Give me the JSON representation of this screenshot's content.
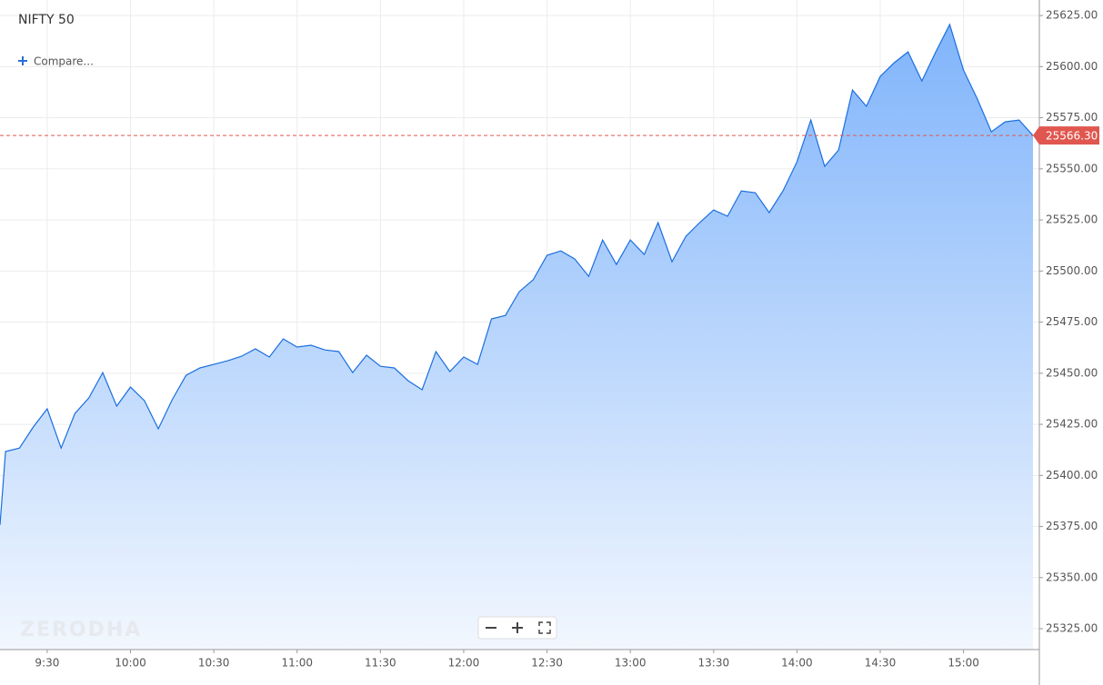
{
  "chart_data": {
    "type": "area",
    "title": "NIFTY 50",
    "compare_label": "Compare...",
    "watermark": "ZERODHA",
    "x": [
      553,
      555,
      560,
      565,
      570,
      575,
      580,
      585,
      590,
      595,
      600,
      605,
      610,
      615,
      620,
      625,
      630,
      635,
      640,
      645,
      650,
      655,
      660,
      665,
      670,
      675,
      680,
      685,
      690,
      695,
      700,
      705,
      710,
      715,
      720,
      725,
      730,
      735,
      740,
      745,
      750,
      755,
      760,
      765,
      770,
      775,
      780,
      785,
      790,
      795,
      800,
      805,
      810,
      815,
      820,
      825,
      830,
      835,
      840,
      845,
      850,
      855,
      860,
      865,
      870,
      875,
      880,
      885,
      890,
      895,
      900,
      905,
      910,
      915,
      920,
      925
    ],
    "series": [
      {
        "name": "NIFTY 50",
        "color": "#1a6fe0",
        "values": [
          25375.8,
          25411.7,
          25413.4,
          25423.7,
          25432.6,
          25413.4,
          25430.3,
          25437.9,
          25450.3,
          25433.9,
          25443.2,
          25436.6,
          25422.8,
          25437.0,
          25449.0,
          25452.6,
          25454.3,
          25456.1,
          25458.3,
          25461.9,
          25457.9,
          25466.8,
          25462.8,
          25463.7,
          25461.4,
          25460.6,
          25450.3,
          25458.8,
          25453.4,
          25452.6,
          25446.3,
          25441.9,
          25460.6,
          25450.8,
          25457.9,
          25454.3,
          25476.6,
          25478.3,
          25489.9,
          25495.7,
          25507.7,
          25509.9,
          25505.9,
          25497.4,
          25515.2,
          25503.2,
          25515.2,
          25508.1,
          25523.7,
          25504.6,
          25517.0,
          25523.7,
          25529.9,
          25526.8,
          25539.2,
          25538.3,
          25528.6,
          25539.2,
          25553.4,
          25573.9,
          25551.2,
          25559.2,
          25588.6,
          25580.6,
          25595.2,
          25601.9,
          25607.2,
          25593.0,
          25607.2,
          25620.6,
          25598.3,
          25584.1,
          25568.1,
          25573.0,
          25573.9,
          25566.3
        ]
      }
    ],
    "last_price": {
      "value": 25566.3,
      "label": "25566.30",
      "color": "#e0574f"
    },
    "xlim": [
      553,
      927.3
    ],
    "xticks": [
      {
        "value": 570,
        "label": "9:30"
      },
      {
        "value": 600,
        "label": "10:00"
      },
      {
        "value": 630,
        "label": "10:30"
      },
      {
        "value": 660,
        "label": "11:00"
      },
      {
        "value": 690,
        "label": "11:30"
      },
      {
        "value": 720,
        "label": "12:00"
      },
      {
        "value": 750,
        "label": "12:30"
      },
      {
        "value": 780,
        "label": "13:00"
      },
      {
        "value": 810,
        "label": "13:30"
      },
      {
        "value": 840,
        "label": "14:00"
      },
      {
        "value": 870,
        "label": "14:30"
      },
      {
        "value": 900,
        "label": "15:00"
      }
    ],
    "ylim": [
      25314.8,
      25632.6
    ],
    "yticks": [
      {
        "value": 25325,
        "label": "25325.00"
      },
      {
        "value": 25350,
        "label": "25350.00"
      },
      {
        "value": 25375,
        "label": "25375.00"
      },
      {
        "value": 25400,
        "label": "25400.00"
      },
      {
        "value": 25425,
        "label": "25425.00"
      },
      {
        "value": 25450,
        "label": "25450.00"
      },
      {
        "value": 25475,
        "label": "25475.00"
      },
      {
        "value": 25500,
        "label": "25500.00"
      },
      {
        "value": 25525,
        "label": "25525.00"
      },
      {
        "value": 25550,
        "label": "25550.00"
      },
      {
        "value": 25575,
        "label": "25575.00"
      },
      {
        "value": 25600,
        "label": "25600.00"
      },
      {
        "value": 25625,
        "label": "25625.00"
      }
    ],
    "grid": true
  }
}
